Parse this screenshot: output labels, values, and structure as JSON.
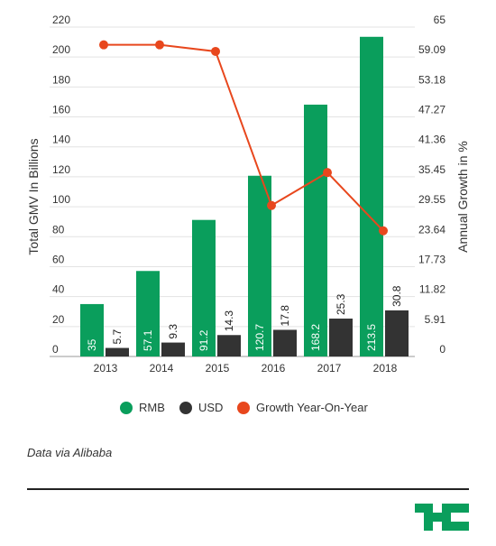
{
  "chart_data": {
    "type": "bar",
    "categories": [
      "2013",
      "2014",
      "2015",
      "2016",
      "2017",
      "2018"
    ],
    "series": [
      {
        "name": "RMB",
        "type": "bar",
        "axis": "left",
        "color": "#0a9e5c",
        "values": [
          35,
          57.1,
          91.2,
          120.7,
          168.2,
          213.5
        ]
      },
      {
        "name": "USD",
        "type": "bar",
        "axis": "left",
        "color": "#333333",
        "values": [
          5.7,
          9.3,
          14.3,
          17.8,
          25.3,
          30.8
        ]
      },
      {
        "name": "Growth Year-On-Year",
        "type": "line",
        "axis": "right",
        "color": "#e8471d",
        "values": [
          61.5,
          61.5,
          60.2,
          29.8,
          36.3,
          24.8
        ]
      }
    ],
    "ylabel": "Total GMV In Billions",
    "y2label": "Annual Growth in %",
    "ylim": [
      0,
      220
    ],
    "y2lim": [
      0,
      65
    ],
    "yticks": [
      "0",
      "20",
      "40",
      "60",
      "80",
      "100",
      "120",
      "140",
      "160",
      "180",
      "200",
      "220"
    ],
    "y2ticks": [
      "0",
      "5.91",
      "11.82",
      "17.73",
      "23.64",
      "29.55",
      "35.45",
      "41.36",
      "47.27",
      "53.18",
      "59.09",
      "65"
    ],
    "grid": true,
    "legend_position": "bottom"
  },
  "source_note": "Data via Alibaba",
  "brand": {
    "name": "TechCrunch",
    "color": "#0a9e5c"
  }
}
